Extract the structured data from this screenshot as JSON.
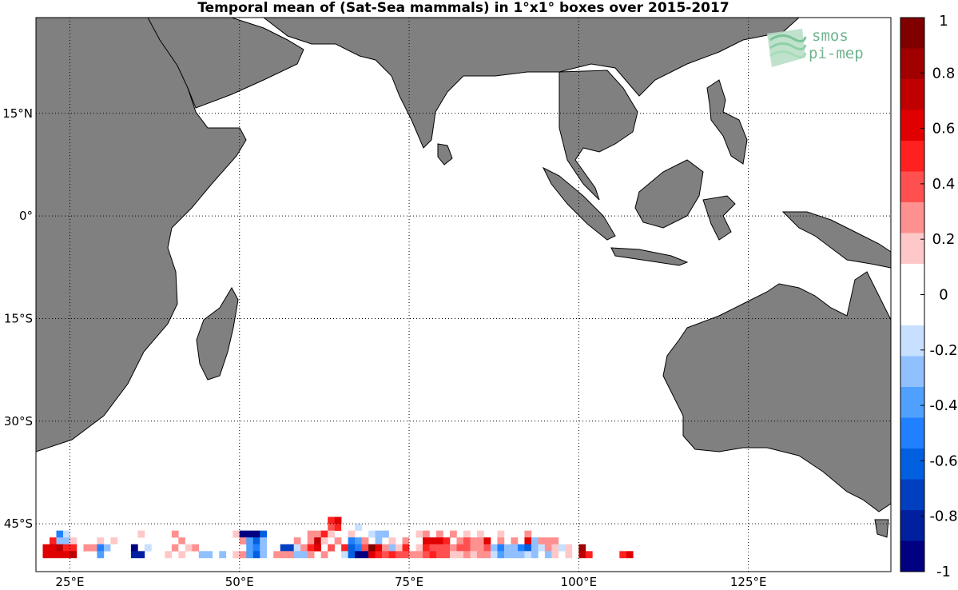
{
  "title": "Temporal mean of (Sat-Sea mammals) in 1°x1° boxes over 2015-2017",
  "logo": {
    "line1": "smos",
    "line2": "pi-mep"
  },
  "map": {
    "lon_range": [
      20,
      146
    ],
    "lat_range": [
      -52,
      29
    ],
    "lon_ticks": [
      {
        "value": 25,
        "label": "25°E"
      },
      {
        "value": 50,
        "label": "50°E"
      },
      {
        "value": 75,
        "label": "75°E"
      },
      {
        "value": 100,
        "label": "100°E"
      },
      {
        "value": 125,
        "label": "125°E"
      }
    ],
    "lat_ticks": [
      {
        "value": 15,
        "label": "15°N"
      },
      {
        "value": 0,
        "label": "0°"
      },
      {
        "value": -15,
        "label": "15°S"
      },
      {
        "value": -30,
        "label": "30°S"
      },
      {
        "value": -45,
        "label": "45°S"
      }
    ],
    "grid": "dotted",
    "land_color": "#808080",
    "ocean_color": "#ffffff"
  },
  "colorbar": {
    "range": [
      -1,
      1
    ],
    "labels": [
      "1",
      "0.8",
      "0.6",
      "0.4",
      "0.2",
      "0",
      "-0.2",
      "-0.4",
      "-0.6",
      "-0.8",
      "-1"
    ],
    "colors_top_to_bottom": [
      "#800000",
      "#a00000",
      "#c00000",
      "#e00000",
      "#ff2020",
      "#ff5050",
      "#ff9090",
      "#ffc8c8",
      "#ffffff",
      "#ffffff",
      "#c8e0ff",
      "#90c0ff",
      "#50a0ff",
      "#2080ff",
      "#0060e0",
      "#0040c0",
      "#0020a0",
      "#000080"
    ]
  },
  "chart_data": {
    "type": "heatmap",
    "title": "Temporal mean of (Sat-Sea mammals) in 1°x1° boxes over 2015-2017",
    "x_unit": "°E",
    "y_unit": "°N",
    "cells": [
      [
        63,
        -44,
        0.5
      ],
      [
        64,
        -44,
        0.6
      ],
      [
        63,
        -45,
        0.4
      ],
      [
        64,
        -45,
        0.5
      ],
      [
        65,
        -45,
        0.1
      ],
      [
        66,
        -45,
        -0.1
      ],
      [
        67,
        -45,
        -0.2
      ],
      [
        23,
        -46,
        -0.5
      ],
      [
        24,
        -46,
        -0.2
      ],
      [
        35,
        -46,
        0.2
      ],
      [
        40,
        -46,
        0.3
      ],
      [
        49,
        -46,
        0.2
      ],
      [
        50,
        -46,
        -0.9
      ],
      [
        51,
        -46,
        -0.9
      ],
      [
        52,
        -46,
        -0.9
      ],
      [
        53,
        -46,
        -0.6
      ],
      [
        60,
        -46,
        0.3
      ],
      [
        61,
        -46,
        0.3
      ],
      [
        62,
        -46,
        0.5
      ],
      [
        63,
        -46,
        0.2
      ],
      [
        66,
        -46,
        0.2
      ],
      [
        68,
        -46,
        -0.1
      ],
      [
        69,
        -46,
        -0.2
      ],
      [
        70,
        -46,
        -0.3
      ],
      [
        71,
        -46,
        -0.3
      ],
      [
        76,
        -46,
        0.2
      ],
      [
        77,
        -46,
        0.3
      ],
      [
        79,
        -46,
        0.3
      ],
      [
        81,
        -46,
        0.3
      ],
      [
        83,
        -46,
        0.2
      ],
      [
        85,
        -46,
        0.2
      ],
      [
        88,
        -46,
        0.2
      ],
      [
        91,
        -46,
        0.1
      ],
      [
        92,
        -46,
        0.3
      ],
      [
        22,
        -47,
        0.5
      ],
      [
        23,
        -47,
        -0.3
      ],
      [
        24,
        -47,
        -0.3
      ],
      [
        25,
        -47,
        0.2
      ],
      [
        29,
        -47,
        0.2
      ],
      [
        31,
        -47,
        0.2
      ],
      [
        41,
        -47,
        0.3
      ],
      [
        42,
        -47,
        0.1
      ],
      [
        50,
        -47,
        0.3
      ],
      [
        51,
        -47,
        -0.4
      ],
      [
        52,
        -47,
        -0.6
      ],
      [
        53,
        -47,
        -0.3
      ],
      [
        58,
        -47,
        0.3
      ],
      [
        60,
        -47,
        0.3
      ],
      [
        61,
        -47,
        0.7
      ],
      [
        62,
        -47,
        0.2
      ],
      [
        64,
        -47,
        0.3
      ],
      [
        66,
        -47,
        -0.5
      ],
      [
        67,
        -47,
        -0.4
      ],
      [
        68,
        -47,
        0.3
      ],
      [
        70,
        -47,
        -0.3
      ],
      [
        72,
        -47,
        0.2
      ],
      [
        74,
        -47,
        0.3
      ],
      [
        75,
        -47,
        0.1
      ],
      [
        77,
        -47,
        0.6
      ],
      [
        78,
        -47,
        0.6
      ],
      [
        79,
        -47,
        0.6
      ],
      [
        80,
        -47,
        0.5
      ],
      [
        82,
        -47,
        0.3
      ],
      [
        83,
        -47,
        0.4
      ],
      [
        84,
        -47,
        0.3
      ],
      [
        85,
        -47,
        0.3
      ],
      [
        86,
        -47,
        0.6
      ],
      [
        88,
        -47,
        0.3
      ],
      [
        90,
        -47,
        0.3
      ],
      [
        92,
        -47,
        0.6
      ],
      [
        93,
        -47,
        -0.3
      ],
      [
        94,
        -47,
        0.3
      ],
      [
        95,
        -47,
        0.3
      ],
      [
        96,
        -47,
        0.3
      ],
      [
        21,
        -48,
        0.6
      ],
      [
        22,
        -48,
        0.6
      ],
      [
        23,
        -48,
        0.7
      ],
      [
        24,
        -48,
        0.5
      ],
      [
        25,
        -48,
        0.5
      ],
      [
        27,
        -48,
        0.3
      ],
      [
        28,
        -48,
        0.3
      ],
      [
        29,
        -48,
        -0.5
      ],
      [
        30,
        -48,
        -0.3
      ],
      [
        31,
        -48,
        0.1
      ],
      [
        34,
        -48,
        -0.9
      ],
      [
        36,
        -48,
        -0.2
      ],
      [
        40,
        -48,
        0.3
      ],
      [
        41,
        -48,
        0.1
      ],
      [
        42,
        -48,
        0.2
      ],
      [
        43,
        -48,
        0.3
      ],
      [
        51,
        -48,
        -0.4
      ],
      [
        52,
        -48,
        -0.5
      ],
      [
        53,
        -48,
        -0.3
      ],
      [
        56,
        -48,
        -0.7
      ],
      [
        57,
        -48,
        -0.7
      ],
      [
        58,
        -48,
        -0.2
      ],
      [
        59,
        -48,
        0.3
      ],
      [
        60,
        -48,
        0.5
      ],
      [
        61,
        -48,
        0.6
      ],
      [
        63,
        -48,
        0.4
      ],
      [
        65,
        -48,
        0.5
      ],
      [
        66,
        -48,
        -0.6
      ],
      [
        67,
        -48,
        -0.5
      ],
      [
        68,
        -48,
        0.4
      ],
      [
        69,
        -48,
        0.9
      ],
      [
        70,
        -48,
        0.6
      ],
      [
        71,
        -48,
        0.3
      ],
      [
        72,
        -48,
        -0.3
      ],
      [
        73,
        -48,
        0.2
      ],
      [
        74,
        -48,
        0.5
      ],
      [
        76,
        -48,
        0.2
      ],
      [
        77,
        -48,
        0.5
      ],
      [
        78,
        -48,
        0.4
      ],
      [
        79,
        -48,
        0.4
      ],
      [
        80,
        -48,
        0.4
      ],
      [
        81,
        -48,
        0.3
      ],
      [
        82,
        -48,
        0.4
      ],
      [
        83,
        -48,
        0.4
      ],
      [
        84,
        -48,
        0.3
      ],
      [
        85,
        -48,
        0.3
      ],
      [
        86,
        -48,
        0.4
      ],
      [
        87,
        -48,
        -0.3
      ],
      [
        88,
        -48,
        -0.5
      ],
      [
        89,
        -48,
        -0.3
      ],
      [
        90,
        -48,
        -0.3
      ],
      [
        91,
        -48,
        -0.5
      ],
      [
        92,
        -48,
        -0.6
      ],
      [
        93,
        -48,
        -0.3
      ],
      [
        94,
        -48,
        -0.2
      ],
      [
        95,
        -48,
        0.3
      ],
      [
        96,
        -48,
        0.2
      ],
      [
        97,
        -48,
        -0.2
      ],
      [
        98,
        -48,
        0.2
      ],
      [
        100,
        -48,
        0.8
      ],
      [
        21,
        -49,
        0.6
      ],
      [
        22,
        -49,
        0.6
      ],
      [
        23,
        -49,
        0.6
      ],
      [
        24,
        -49,
        0.6
      ],
      [
        25,
        -49,
        0.7
      ],
      [
        29,
        -49,
        -0.4
      ],
      [
        34,
        -49,
        -0.8
      ],
      [
        35,
        -49,
        -0.8
      ],
      [
        39,
        -49,
        0.2
      ],
      [
        41,
        -49,
        0.2
      ],
      [
        44,
        -49,
        -0.3
      ],
      [
        45,
        -49,
        -0.3
      ],
      [
        47,
        -49,
        -0.3
      ],
      [
        49,
        -49,
        0.2
      ],
      [
        50,
        -49,
        0.3
      ],
      [
        51,
        -49,
        -0.4
      ],
      [
        52,
        -49,
        -0.6
      ],
      [
        53,
        -49,
        -0.3
      ],
      [
        55,
        -49,
        0.3
      ],
      [
        56,
        -49,
        0.3
      ],
      [
        57,
        -49,
        0.3
      ],
      [
        58,
        -49,
        -0.3
      ],
      [
        59,
        -49,
        -0.3
      ],
      [
        60,
        -49,
        0.3
      ],
      [
        62,
        -49,
        0.3
      ],
      [
        65,
        -49,
        -0.2
      ],
      [
        66,
        -49,
        -0.6
      ],
      [
        67,
        -49,
        -0.9
      ],
      [
        68,
        -49,
        -0.9
      ],
      [
        69,
        -49,
        0.6
      ],
      [
        70,
        -49,
        0.5
      ],
      [
        71,
        -49,
        0.4
      ],
      [
        72,
        -49,
        0.5
      ],
      [
        73,
        -49,
        0.4
      ],
      [
        74,
        -49,
        0.4
      ],
      [
        75,
        -49,
        0.3
      ],
      [
        76,
        -49,
        0.3
      ],
      [
        77,
        -49,
        0.4
      ],
      [
        78,
        -49,
        0.5
      ],
      [
        79,
        -49,
        0.4
      ],
      [
        80,
        -49,
        0.4
      ],
      [
        81,
        -49,
        0.2
      ],
      [
        82,
        -49,
        0.2
      ],
      [
        83,
        -49,
        0.3
      ],
      [
        84,
        -49,
        0.2
      ],
      [
        85,
        -49,
        0.3
      ],
      [
        86,
        -49,
        0.3
      ],
      [
        87,
        -49,
        -0.2
      ],
      [
        88,
        -49,
        -0.4
      ],
      [
        89,
        -49,
        -0.3
      ],
      [
        90,
        -49,
        -0.3
      ],
      [
        91,
        -49,
        -0.3
      ],
      [
        92,
        -49,
        -0.2
      ],
      [
        93,
        -49,
        -0.3
      ],
      [
        95,
        -49,
        -0.3
      ],
      [
        96,
        -49,
        0.2
      ],
      [
        98,
        -49,
        0.2
      ],
      [
        100,
        -49,
        0.7
      ],
      [
        101,
        -49,
        0.5
      ],
      [
        106,
        -49,
        0.5
      ],
      [
        107,
        -49,
        0.6
      ]
    ]
  }
}
